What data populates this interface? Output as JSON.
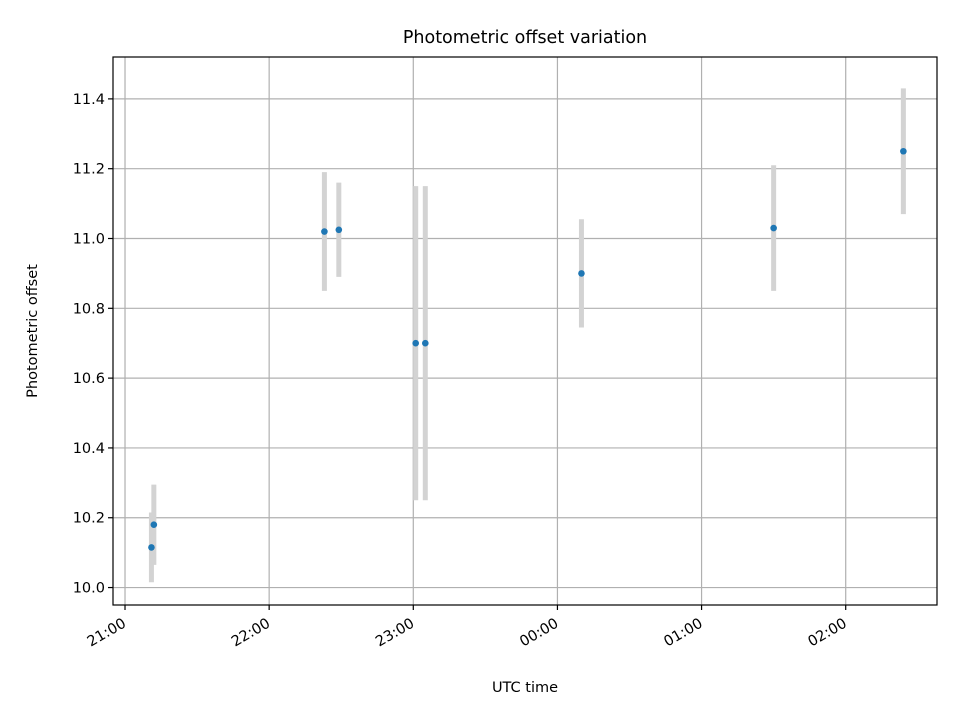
{
  "chart_data": {
    "type": "scatter",
    "title": "Photometric offset variation",
    "xlabel": "UTC time",
    "ylabel": "Photometric offset",
    "xlim": [
      "20:55",
      "02:38"
    ],
    "ylim": [
      9.95,
      11.52
    ],
    "x_ticks": [
      "21:00",
      "22:00",
      "23:00",
      "00:00",
      "01:00",
      "02:00"
    ],
    "y_ticks": [
      "10.0",
      "10.2",
      "10.4",
      "10.6",
      "10.8",
      "11.0",
      "11.2",
      "11.4"
    ],
    "grid": true,
    "series": [
      {
        "points": [
          {
            "time": "21:11",
            "offset": 10.115,
            "err": 0.1
          },
          {
            "time": "21:12",
            "offset": 10.18,
            "err": 0.115
          },
          {
            "time": "22:23",
            "offset": 11.02,
            "err": 0.17
          },
          {
            "time": "22:29",
            "offset": 11.025,
            "err": 0.135
          },
          {
            "time": "23:01",
            "offset": 10.7,
            "err": 0.45
          },
          {
            "time": "23:05",
            "offset": 10.7,
            "err": 0.45
          },
          {
            "time": "00:10",
            "offset": 10.9,
            "err": 0.155
          },
          {
            "time": "01:30",
            "offset": 11.03,
            "err": 0.18
          },
          {
            "time": "02:24",
            "offset": 11.25,
            "err": 0.18
          }
        ]
      }
    ],
    "colors": {
      "marker": "#1f77b4",
      "errorbar": "#d3d3d3",
      "grid": "#b0b0b0"
    }
  }
}
